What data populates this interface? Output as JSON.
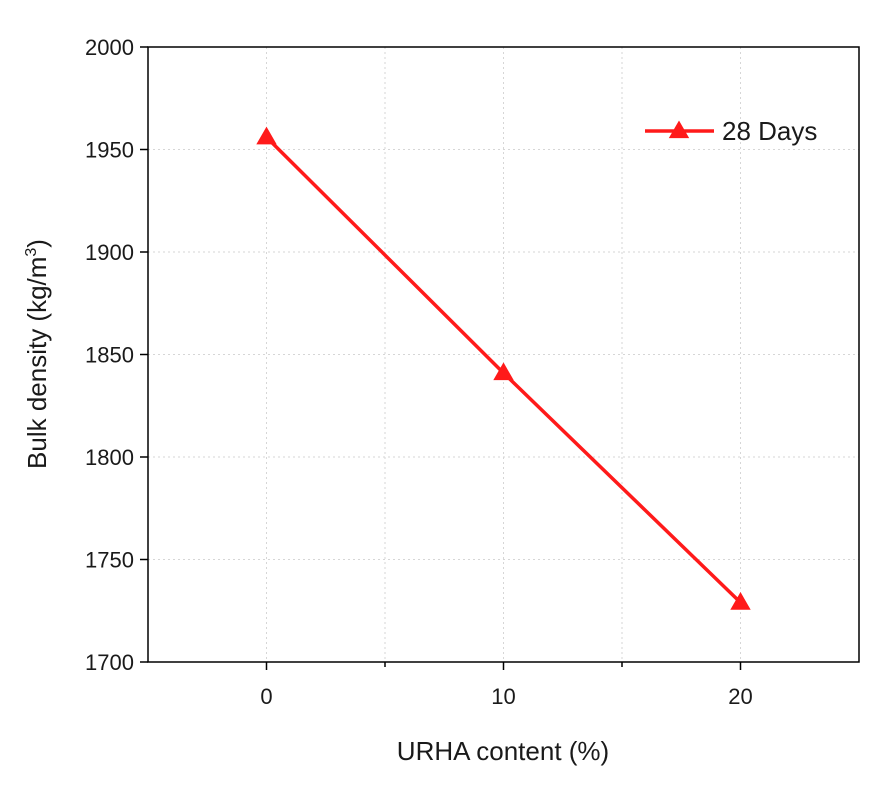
{
  "chart_data": {
    "type": "line",
    "title": "",
    "xlabel": "URHA content (%)",
    "ylabel_main": "Bulk density (kg/m",
    "ylabel_sup": "3",
    "ylabel_end": ")",
    "xlim": [
      -5,
      25
    ],
    "ylim": [
      1700,
      2000
    ],
    "x_ticks": [
      0,
      10,
      20
    ],
    "x_minor_ticks": [
      -5,
      5,
      15,
      25
    ],
    "y_ticks": [
      1700,
      1750,
      1800,
      1850,
      1900,
      1950,
      2000
    ],
    "grid": true,
    "legend_position": "top-right",
    "series": [
      {
        "name": "28 Days",
        "color": "#ff1a1a",
        "marker": "triangle",
        "x": [
          0,
          10,
          20
        ],
        "y": [
          1956,
          1841,
          1729
        ]
      }
    ]
  }
}
